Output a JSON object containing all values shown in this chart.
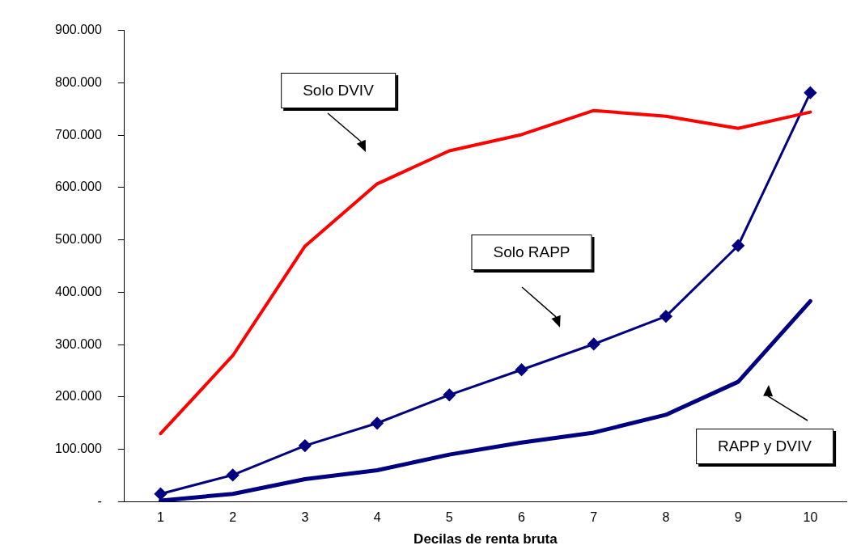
{
  "chart_data": {
    "type": "line",
    "xlabel": "Decilas de renta bruta",
    "categories": [
      "1",
      "2",
      "3",
      "4",
      "5",
      "6",
      "7",
      "8",
      "9",
      "10"
    ],
    "series": [
      {
        "color": "#ff0000",
        "marker": "none",
        "values": [
          130000,
          279000,
          488000,
          607000,
          670000,
          701000,
          747000,
          736000,
          713000,
          744000
        ]
      },
      {
        "color": "#000080",
        "marker": "diamond",
        "values": [
          15000,
          51000,
          107000,
          150000,
          204000,
          252000,
          301000,
          354000,
          489000,
          781000
        ]
      },
      {
        "color": "#000080",
        "marker": "none",
        "values": [
          2000,
          15000,
          43000,
          60000,
          90000,
          113000,
          132000,
          166000,
          229000,
          383000
        ]
      }
    ],
    "ylim": [
      0,
      900000
    ],
    "yticks": [
      {
        "value": 0,
        "label": "-"
      },
      {
        "value": 100000,
        "label": "100.000"
      },
      {
        "value": 200000,
        "label": "200.000"
      },
      {
        "value": 300000,
        "label": "300.000"
      },
      {
        "value": 400000,
        "label": "400.000"
      },
      {
        "value": 500000,
        "label": "500.000"
      },
      {
        "value": 600000,
        "label": "600.000"
      },
      {
        "value": 700000,
        "label": "700.000"
      },
      {
        "value": 800000,
        "label": "800.000"
      },
      {
        "value": 900000,
        "label": "900.000"
      }
    ],
    "grid": false,
    "legend": false,
    "line_style": "solid",
    "annotations": [
      "Solo DVIV",
      "Solo RAPP",
      "RAPP y DVIV"
    ]
  }
}
